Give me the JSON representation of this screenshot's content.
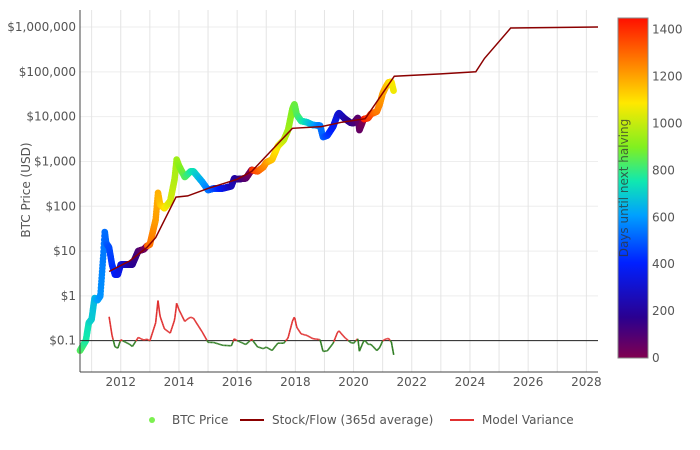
{
  "chart_data": {
    "type": "scatter",
    "title": "",
    "xlabel": "",
    "ylabel": "BTC Price (USD)",
    "yscale": "log",
    "xlim": [
      2010.6,
      2028.4
    ],
    "ylim": [
      0.02,
      2400000
    ],
    "x_ticks": [
      "2012",
      "2014",
      "2016",
      "2018",
      "2020",
      "2022",
      "2024",
      "2026",
      "2028"
    ],
    "y_ticks": [
      {
        "v": 1000000,
        "label": "$1,000,000"
      },
      {
        "v": 100000,
        "label": "$100,000"
      },
      {
        "v": 10000,
        "label": "$10,000"
      },
      {
        "v": 1000,
        "label": "$1,000"
      },
      {
        "v": 100,
        "label": "$100"
      },
      {
        "v": 10,
        "label": "$10"
      },
      {
        "v": 1,
        "label": "$1"
      },
      {
        "v": 0.1,
        "label": "$0.1"
      }
    ],
    "grid": true,
    "legend_position": "bottom",
    "legend": [
      "BTC Price",
      "Stock/Flow (365d average)",
      "Model Variance"
    ],
    "colorbar": {
      "title": "Days until next halving",
      "range": [
        0,
        1450
      ],
      "ticks": [
        "0",
        "200",
        "400",
        "600",
        "800",
        "1000",
        "1200",
        "1400"
      ]
    },
    "halvings": [
      2012.91,
      2016.52,
      2020.36,
      2024.3
    ],
    "series": [
      {
        "name": "BTC Price",
        "points": [
          [
            2010.6,
            0.06
          ],
          [
            2010.8,
            0.1
          ],
          [
            2010.9,
            0.25
          ],
          [
            2011.0,
            0.3
          ],
          [
            2011.1,
            0.9
          ],
          [
            2011.2,
            0.8
          ],
          [
            2011.3,
            1
          ],
          [
            2011.4,
            8
          ],
          [
            2011.45,
            28
          ],
          [
            2011.5,
            15
          ],
          [
            2011.6,
            12
          ],
          [
            2011.7,
            5
          ],
          [
            2011.8,
            3
          ],
          [
            2011.9,
            3
          ],
          [
            2012.0,
            5
          ],
          [
            2012.2,
            5
          ],
          [
            2012.4,
            5
          ],
          [
            2012.6,
            10
          ],
          [
            2012.8,
            11
          ],
          [
            2012.9,
            13
          ],
          [
            2013.0,
            14
          ],
          [
            2013.2,
            50
          ],
          [
            2013.28,
            200
          ],
          [
            2013.35,
            110
          ],
          [
            2013.5,
            90
          ],
          [
            2013.7,
            130
          ],
          [
            2013.85,
            400
          ],
          [
            2013.92,
            1100
          ],
          [
            2014.0,
            800
          ],
          [
            2014.1,
            600
          ],
          [
            2014.2,
            450
          ],
          [
            2014.4,
            600
          ],
          [
            2014.5,
            600
          ],
          [
            2014.6,
            500
          ],
          [
            2014.8,
            350
          ],
          [
            2015.0,
            230
          ],
          [
            2015.2,
            250
          ],
          [
            2015.5,
            250
          ],
          [
            2015.8,
            280
          ],
          [
            2015.9,
            420
          ],
          [
            2016.0,
            400
          ],
          [
            2016.3,
            420
          ],
          [
            2016.5,
            650
          ],
          [
            2016.7,
            600
          ],
          [
            2016.9,
            750
          ],
          [
            2017.0,
            950
          ],
          [
            2017.2,
            1100
          ],
          [
            2017.4,
            2200
          ],
          [
            2017.6,
            3000
          ],
          [
            2017.75,
            5000
          ],
          [
            2017.9,
            15000
          ],
          [
            2017.97,
            19000
          ],
          [
            2018.05,
            11000
          ],
          [
            2018.2,
            8000
          ],
          [
            2018.4,
            7500
          ],
          [
            2018.6,
            6500
          ],
          [
            2018.85,
            6300
          ],
          [
            2018.95,
            3500
          ],
          [
            2019.1,
            3800
          ],
          [
            2019.3,
            6000
          ],
          [
            2019.45,
            11000
          ],
          [
            2019.5,
            12000
          ],
          [
            2019.7,
            9000
          ],
          [
            2019.9,
            7300
          ],
          [
            2020.0,
            7200
          ],
          [
            2020.15,
            9500
          ],
          [
            2020.2,
            5000
          ],
          [
            2020.35,
            8800
          ],
          [
            2020.5,
            9300
          ],
          [
            2020.6,
            11500
          ],
          [
            2020.8,
            13000
          ],
          [
            2020.9,
            19000
          ],
          [
            2021.0,
            33000
          ],
          [
            2021.1,
            45000
          ],
          [
            2021.2,
            58000
          ],
          [
            2021.3,
            60000
          ],
          [
            2021.38,
            37000
          ]
        ]
      },
      {
        "name": "Stock/Flow (365d average)",
        "color": "#8b0000",
        "points": [
          [
            2011.6,
            3.5
          ],
          [
            2012.3,
            6
          ],
          [
            2012.9,
            12
          ],
          [
            2013.2,
            20
          ],
          [
            2013.9,
            160
          ],
          [
            2014.3,
            170
          ],
          [
            2015.0,
            250
          ],
          [
            2016.0,
            400
          ],
          [
            2016.5,
            600
          ],
          [
            2017.9,
            5500
          ],
          [
            2018.9,
            6000
          ],
          [
            2019.6,
            7500
          ],
          [
            2020.4,
            9000
          ],
          [
            2021.4,
            80000
          ],
          [
            2023.0,
            90000
          ],
          [
            2024.2,
            100000
          ],
          [
            2024.5,
            200000
          ],
          [
            2025.4,
            950000
          ],
          [
            2028.4,
            1000000
          ]
        ]
      },
      {
        "name": "Model Variance",
        "color": "#e03030",
        "below_color": "#2e7d22",
        "reference": 0.1,
        "formula": "0.1*price/stock_flow"
      }
    ]
  }
}
